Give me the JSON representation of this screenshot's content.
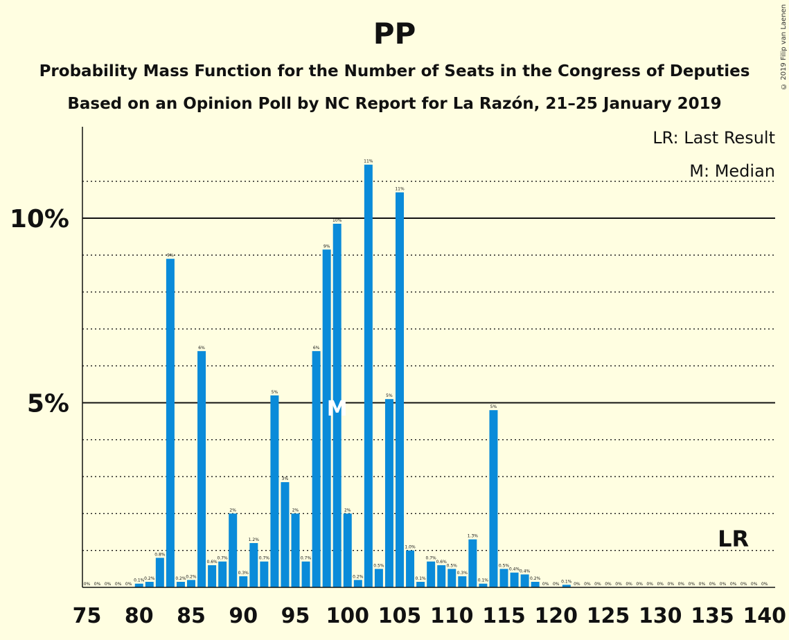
{
  "header": {
    "title": "PP",
    "subtitle_1": "Probability Mass Function for the Number of Seats in the Congress of Deputies",
    "subtitle_2": "Based on an Opinion Poll by NC Report for La Razón, 21–25 January 2019",
    "copyright": "© 2019 Filip van Laenen"
  },
  "legend": {
    "last_result": "LR: Last Result",
    "median": "M: Median"
  },
  "colors": {
    "background": "#FFFEE1",
    "bar": "#0A8BD9",
    "axis": "#111111"
  },
  "chart_data": {
    "type": "bar",
    "x_ticks": [
      "75",
      "80",
      "85",
      "90",
      "95",
      "100",
      "105",
      "110",
      "115",
      "120",
      "125",
      "130",
      "135",
      "140"
    ],
    "y_ticks": [
      "5%",
      "10%"
    ],
    "ylim": [
      0,
      12.5
    ],
    "xlim": [
      75,
      140
    ],
    "median_seat": 99,
    "median_marker": "M",
    "last_result_seat": 137,
    "last_result_marker": "LR",
    "bars": [
      {
        "seat": 75,
        "value": 0,
        "label": "0%"
      },
      {
        "seat": 76,
        "value": 0,
        "label": "0%"
      },
      {
        "seat": 77,
        "value": 0,
        "label": "0%"
      },
      {
        "seat": 78,
        "value": 0,
        "label": "0%"
      },
      {
        "seat": 79,
        "value": 0,
        "label": "0%"
      },
      {
        "seat": 80,
        "value": 0.1,
        "label": "0.1%"
      },
      {
        "seat": 81,
        "value": 0.15,
        "label": "0.2%"
      },
      {
        "seat": 82,
        "value": 0.8,
        "label": "0.8%"
      },
      {
        "seat": 83,
        "value": 8.9,
        "label": "9%"
      },
      {
        "seat": 84,
        "value": 0.15,
        "label": "0.2%"
      },
      {
        "seat": 85,
        "value": 0.2,
        "label": "0.2%"
      },
      {
        "seat": 86,
        "value": 6.4,
        "label": "6%"
      },
      {
        "seat": 87,
        "value": 0.6,
        "label": "0.6%"
      },
      {
        "seat": 88,
        "value": 0.7,
        "label": "0.7%"
      },
      {
        "seat": 89,
        "value": 2.0,
        "label": "2%"
      },
      {
        "seat": 90,
        "value": 0.3,
        "label": "0.3%"
      },
      {
        "seat": 91,
        "value": 1.2,
        "label": "1.2%"
      },
      {
        "seat": 92,
        "value": 0.7,
        "label": "0.7%"
      },
      {
        "seat": 93,
        "value": 5.2,
        "label": "5%"
      },
      {
        "seat": 94,
        "value": 2.85,
        "label": "3%"
      },
      {
        "seat": 95,
        "value": 2.0,
        "label": "2%"
      },
      {
        "seat": 96,
        "value": 0.7,
        "label": "0.7%"
      },
      {
        "seat": 97,
        "value": 6.4,
        "label": "6%"
      },
      {
        "seat": 98,
        "value": 9.15,
        "label": "9%"
      },
      {
        "seat": 99,
        "value": 9.85,
        "label": "10%"
      },
      {
        "seat": 100,
        "value": 2.0,
        "label": "2%"
      },
      {
        "seat": 101,
        "value": 0.2,
        "label": "0.2%"
      },
      {
        "seat": 102,
        "value": 11.45,
        "label": "11%"
      },
      {
        "seat": 103,
        "value": 0.5,
        "label": "0.5%"
      },
      {
        "seat": 104,
        "value": 5.1,
        "label": "5%"
      },
      {
        "seat": 105,
        "value": 10.7,
        "label": "11%"
      },
      {
        "seat": 106,
        "value": 1.0,
        "label": "1.0%"
      },
      {
        "seat": 107,
        "value": 0.15,
        "label": "0.1%"
      },
      {
        "seat": 108,
        "value": 0.7,
        "label": "0.7%"
      },
      {
        "seat": 109,
        "value": 0.6,
        "label": "0.6%"
      },
      {
        "seat": 110,
        "value": 0.5,
        "label": "0.5%"
      },
      {
        "seat": 111,
        "value": 0.3,
        "label": "0.3%"
      },
      {
        "seat": 112,
        "value": 1.3,
        "label": "1.3%"
      },
      {
        "seat": 113,
        "value": 0.1,
        "label": "0.1%"
      },
      {
        "seat": 114,
        "value": 4.8,
        "label": "5%"
      },
      {
        "seat": 115,
        "value": 0.5,
        "label": "0.5%"
      },
      {
        "seat": 116,
        "value": 0.4,
        "label": "0.4%"
      },
      {
        "seat": 117,
        "value": 0.35,
        "label": "0.4%"
      },
      {
        "seat": 118,
        "value": 0.15,
        "label": "0.2%"
      },
      {
        "seat": 119,
        "value": 0,
        "label": "0%"
      },
      {
        "seat": 120,
        "value": 0,
        "label": "0%"
      },
      {
        "seat": 121,
        "value": 0.07,
        "label": "0.1%"
      },
      {
        "seat": 122,
        "value": 0,
        "label": "0%"
      },
      {
        "seat": 123,
        "value": 0,
        "label": "0%"
      },
      {
        "seat": 124,
        "value": 0,
        "label": "0%"
      },
      {
        "seat": 125,
        "value": 0,
        "label": "0%"
      },
      {
        "seat": 126,
        "value": 0,
        "label": "0%"
      },
      {
        "seat": 127,
        "value": 0,
        "label": "0%"
      },
      {
        "seat": 128,
        "value": 0,
        "label": "0%"
      },
      {
        "seat": 129,
        "value": 0,
        "label": "0%"
      },
      {
        "seat": 130,
        "value": 0,
        "label": "0%"
      },
      {
        "seat": 131,
        "value": 0,
        "label": "0%"
      },
      {
        "seat": 132,
        "value": 0,
        "label": "0%"
      },
      {
        "seat": 133,
        "value": 0,
        "label": "0%"
      },
      {
        "seat": 134,
        "value": 0,
        "label": "0%"
      },
      {
        "seat": 135,
        "value": 0,
        "label": "0%"
      },
      {
        "seat": 136,
        "value": 0,
        "label": "0%"
      },
      {
        "seat": 137,
        "value": 0,
        "label": "0%"
      },
      {
        "seat": 138,
        "value": 0,
        "label": "0%"
      },
      {
        "seat": 139,
        "value": 0,
        "label": "0%"
      },
      {
        "seat": 140,
        "value": 0,
        "label": "0%"
      }
    ]
  }
}
